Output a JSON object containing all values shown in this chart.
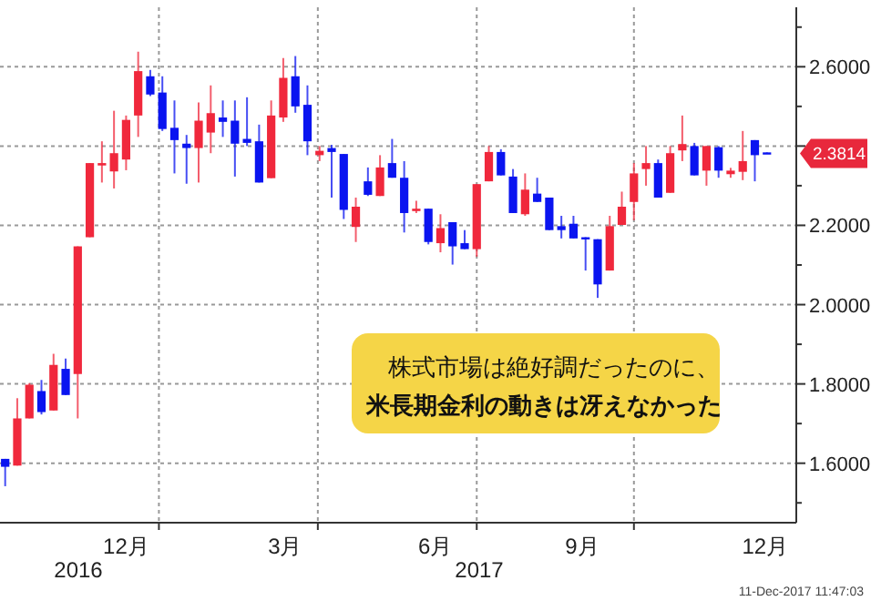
{
  "chart_data": {
    "type": "candlestick",
    "x": [
      "2016-09-30",
      "2016-10-07",
      "2016-10-14",
      "2016-10-21",
      "2016-10-28",
      "2016-11-04",
      "2016-11-11",
      "2016-11-18",
      "2016-11-25",
      "2016-12-02",
      "2016-12-09",
      "2016-12-16",
      "2016-12-23",
      "2016-12-30",
      "2017-01-06",
      "2017-01-13",
      "2017-01-20",
      "2017-01-27",
      "2017-02-03",
      "2017-02-10",
      "2017-02-17",
      "2017-02-24",
      "2017-03-03",
      "2017-03-10",
      "2017-03-17",
      "2017-03-24",
      "2017-03-31",
      "2017-04-07",
      "2017-04-14",
      "2017-04-21",
      "2017-04-28",
      "2017-05-05",
      "2017-05-12",
      "2017-05-19",
      "2017-05-26",
      "2017-06-02",
      "2017-06-09",
      "2017-06-16",
      "2017-06-23",
      "2017-06-30",
      "2017-07-07",
      "2017-07-14",
      "2017-07-21",
      "2017-07-28",
      "2017-08-04",
      "2017-08-11",
      "2017-08-18",
      "2017-08-25",
      "2017-09-01",
      "2017-09-08",
      "2017-09-15",
      "2017-09-22",
      "2017-09-29",
      "2017-10-06",
      "2017-10-13",
      "2017-10-20",
      "2017-10-27",
      "2017-11-03",
      "2017-11-10",
      "2017-11-17",
      "2017-11-24",
      "2017-12-01",
      "2017-12-08",
      "2017-12-15"
    ],
    "ohlc": [
      [
        1.611,
        1.611,
        1.542,
        1.591
      ],
      [
        1.594,
        1.764,
        1.594,
        1.713
      ],
      [
        1.713,
        1.802,
        1.713,
        1.798
      ],
      [
        1.782,
        1.81,
        1.723,
        1.729
      ],
      [
        1.733,
        1.876,
        1.733,
        1.848
      ],
      [
        1.838,
        1.864,
        1.772,
        1.772
      ],
      [
        1.825,
        2.147,
        1.713,
        2.147
      ],
      [
        2.17,
        2.357,
        2.17,
        2.357
      ],
      [
        2.351,
        2.412,
        2.308,
        2.357
      ],
      [
        2.336,
        2.489,
        2.293,
        2.382
      ],
      [
        2.366,
        2.477,
        2.339,
        2.466
      ],
      [
        2.477,
        2.638,
        2.423,
        2.589
      ],
      [
        2.576,
        2.592,
        2.526,
        2.53
      ],
      [
        2.535,
        2.576,
        2.438,
        2.443
      ],
      [
        2.446,
        2.515,
        2.331,
        2.415
      ],
      [
        2.406,
        2.428,
        2.305,
        2.395
      ],
      [
        2.395,
        2.51,
        2.308,
        2.464
      ],
      [
        2.434,
        2.553,
        2.382,
        2.483
      ],
      [
        2.472,
        2.515,
        2.423,
        2.461
      ],
      [
        2.464,
        2.515,
        2.323,
        2.406
      ],
      [
        2.418,
        2.523,
        2.4,
        2.408
      ],
      [
        2.412,
        2.454,
        2.308,
        2.308
      ],
      [
        2.319,
        2.515,
        2.319,
        2.477
      ],
      [
        2.472,
        2.622,
        2.461,
        2.572
      ],
      [
        2.576,
        2.627,
        2.484,
        2.5
      ],
      [
        2.504,
        2.553,
        2.377,
        2.412
      ],
      [
        2.377,
        2.4,
        2.362,
        2.388
      ],
      [
        2.395,
        2.403,
        2.27,
        2.385
      ],
      [
        2.38,
        2.38,
        2.216,
        2.239
      ],
      [
        2.196,
        2.27,
        2.158,
        2.247
      ],
      [
        2.311,
        2.346,
        2.274,
        2.277
      ],
      [
        2.274,
        2.377,
        2.274,
        2.346
      ],
      [
        2.357,
        2.418,
        2.32,
        2.32
      ],
      [
        2.32,
        2.362,
        2.182,
        2.231
      ],
      [
        2.236,
        2.262,
        2.231,
        2.242
      ],
      [
        2.242,
        2.242,
        2.152,
        2.158
      ],
      [
        2.155,
        2.228,
        2.132,
        2.193
      ],
      [
        2.208,
        2.208,
        2.101,
        2.147
      ],
      [
        2.155,
        2.188,
        2.14,
        2.14
      ],
      [
        2.14,
        2.304,
        2.121,
        2.304
      ],
      [
        2.311,
        2.4,
        2.311,
        2.385
      ],
      [
        2.385,
        2.392,
        2.326,
        2.326
      ],
      [
        2.323,
        2.342,
        2.231,
        2.231
      ],
      [
        2.228,
        2.331,
        2.224,
        2.29
      ],
      [
        2.28,
        2.32,
        2.259,
        2.259
      ],
      [
        2.27,
        2.27,
        2.188,
        2.188
      ],
      [
        2.198,
        2.224,
        2.167,
        2.188
      ],
      [
        2.204,
        2.224,
        2.167,
        2.167
      ],
      [
        2.17,
        2.17,
        2.086,
        2.165
      ],
      [
        2.165,
        2.165,
        2.017,
        2.051
      ],
      [
        2.086,
        2.224,
        2.086,
        2.198
      ],
      [
        2.201,
        2.285,
        2.201,
        2.247
      ],
      [
        2.259,
        2.357,
        2.213,
        2.331
      ],
      [
        2.342,
        2.4,
        2.3,
        2.357
      ],
      [
        2.357,
        2.366,
        2.27,
        2.27
      ],
      [
        2.282,
        2.4,
        2.282,
        2.382
      ],
      [
        2.389,
        2.477,
        2.362,
        2.405
      ],
      [
        2.4,
        2.408,
        2.326,
        2.326
      ],
      [
        2.338,
        2.4,
        2.3,
        2.4
      ],
      [
        2.397,
        2.4,
        2.32,
        2.338
      ],
      [
        2.329,
        2.345,
        2.32,
        2.338
      ],
      [
        2.335,
        2.438,
        2.314,
        2.362
      ],
      [
        2.415,
        2.415,
        2.311,
        2.377
      ],
      [
        2.384,
        2.384,
        2.3814,
        2.3814
      ]
    ],
    "colors": [
      "#0a14f0",
      "#f0283c",
      "#f0283c",
      "#0a14f0",
      "#f0283c",
      "#0a14f0",
      "#f0283c",
      "#f0283c",
      "#f0283c",
      "#f0283c",
      "#f0283c",
      "#f0283c",
      "#0a14f0",
      "#0a14f0",
      "#0a14f0",
      "#0a14f0",
      "#f0283c",
      "#f0283c",
      "#0a14f0",
      "#0a14f0",
      "#0a14f0",
      "#0a14f0",
      "#f0283c",
      "#f0283c",
      "#0a14f0",
      "#0a14f0",
      "#f0283c",
      "#0a14f0",
      "#0a14f0",
      "#f0283c",
      "#0a14f0",
      "#f0283c",
      "#0a14f0",
      "#0a14f0",
      "#f0283c",
      "#0a14f0",
      "#f0283c",
      "#0a14f0",
      "#0a14f0",
      "#f0283c",
      "#f0283c",
      "#0a14f0",
      "#0a14f0",
      "#f0283c",
      "#0a14f0",
      "#0a14f0",
      "#0a14f0",
      "#0a14f0",
      "#0a14f0",
      "#0a14f0",
      "#f0283c",
      "#f0283c",
      "#f0283c",
      "#f0283c",
      "#0a14f0",
      "#f0283c",
      "#f0283c",
      "#0a14f0",
      "#f0283c",
      "#0a14f0",
      "#f0283c",
      "#f0283c",
      "#0a14f0",
      "#0a14f0"
    ],
    "xlim": [
      "2016-09-27",
      "2018-01-01"
    ],
    "xticks": [
      {
        "value": "2016-12-09",
        "label": "12月"
      },
      {
        "value": "2017-03-11",
        "label": "3月"
      },
      {
        "value": "2017-06-06",
        "label": "6月"
      },
      {
        "value": "2017-08-30",
        "label": "9月"
      },
      {
        "value": "2017-12-14",
        "label": "12月"
      },
      {
        "value": "2016-12-28",
        "label": null
      },
      {
        "value": "2017-03-30",
        "label": null
      },
      {
        "value": "2017-06-30",
        "label": null
      },
      {
        "value": "2017-09-29",
        "label": null
      }
    ],
    "ylim": [
      1.45,
      2.75
    ],
    "yticks": [
      {
        "value": 1.5,
        "label": null
      },
      {
        "value": 1.6,
        "label": "1.6000"
      },
      {
        "value": 1.7,
        "label": null
      },
      {
        "value": 1.8,
        "label": "1.8000"
      },
      {
        "value": 1.9,
        "label": null
      },
      {
        "value": 2.0,
        "label": "2.0000"
      },
      {
        "value": 2.1,
        "label": null
      },
      {
        "value": 2.2,
        "label": "2.2000"
      },
      {
        "value": 2.3,
        "label": null
      },
      {
        "value": 2.4,
        "label": null
      },
      {
        "value": 2.5,
        "label": null
      },
      {
        "value": 2.6,
        "label": "2.6000"
      },
      {
        "value": 2.7,
        "label": null
      }
    ],
    "grid": true,
    "annotations": [
      "株式市場は絶好調だったのに、",
      "米長期金利の動きは冴えなかった",
      "11-Dec-2017 11:47:03",
      "2016",
      "2017",
      {
        "text": "2.3814",
        "x": "2017-12-15",
        "y": 2.3814
      }
    ]
  }
}
